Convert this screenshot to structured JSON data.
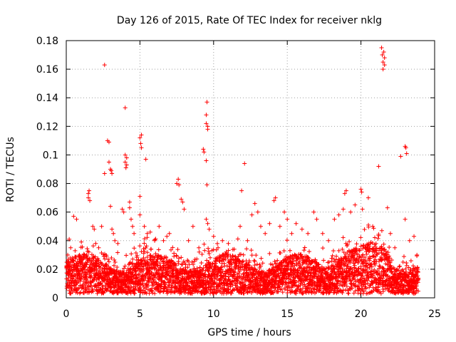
{
  "chart_data": {
    "type": "scatter",
    "title": "Day 126 of 2015, Rate Of TEC Index for receiver nklg",
    "xlabel": "GPS time / hours",
    "ylabel": "ROTI / TECUs",
    "xlim": [
      0,
      25
    ],
    "ylim": [
      0,
      0.18
    ],
    "xticks": [
      0,
      5,
      10,
      15,
      20,
      25
    ],
    "yticks": [
      0,
      0.02,
      0.04,
      0.06,
      0.08,
      0.1,
      0.12,
      0.14,
      0.16,
      0.18
    ],
    "xtick_labels": [
      "0",
      "5",
      "10",
      "15",
      "20",
      "25"
    ],
    "ytick_labels": [
      "0",
      "0.02",
      "0.04",
      "0.06",
      "0.08",
      "0.1",
      "0.12",
      "0.14",
      "0.16",
      "0.18"
    ],
    "grid": true,
    "marker": "+",
    "color": "#ff0000",
    "series": [
      {
        "name": "ROTI",
        "points": [
          [
            0.1,
            0.03
          ],
          [
            0.2,
            0.041
          ],
          [
            0.3,
            0.035
          ],
          [
            0.4,
            0.028
          ],
          [
            0.5,
            0.057
          ],
          [
            0.6,
            0.033
          ],
          [
            0.7,
            0.055
          ],
          [
            0.9,
            0.03
          ],
          [
            1.0,
            0.026
          ],
          [
            1.2,
            0.03
          ],
          [
            1.5,
            0.073
          ],
          [
            1.5,
            0.07
          ],
          [
            1.55,
            0.075
          ],
          [
            1.6,
            0.068
          ],
          [
            1.8,
            0.05
          ],
          [
            1.9,
            0.048
          ],
          [
            2.0,
            0.038
          ],
          [
            2.2,
            0.035
          ],
          [
            2.4,
            0.05
          ],
          [
            2.6,
            0.163
          ],
          [
            2.6,
            0.087
          ],
          [
            2.8,
            0.11
          ],
          [
            2.9,
            0.109
          ],
          [
            2.9,
            0.095
          ],
          [
            3.0,
            0.09
          ],
          [
            3.05,
            0.089
          ],
          [
            3.1,
            0.087
          ],
          [
            3.0,
            0.064
          ],
          [
            3.1,
            0.048
          ],
          [
            3.2,
            0.045
          ],
          [
            3.3,
            0.04
          ],
          [
            3.5,
            0.038
          ],
          [
            3.8,
            0.062
          ],
          [
            3.9,
            0.06
          ],
          [
            4.0,
            0.1
          ],
          [
            4.0,
            0.095
          ],
          [
            4.05,
            0.091
          ],
          [
            4.0,
            0.133
          ],
          [
            4.1,
            0.098
          ],
          [
            4.1,
            0.093
          ],
          [
            4.3,
            0.067
          ],
          [
            4.3,
            0.063
          ],
          [
            4.4,
            0.055
          ],
          [
            4.5,
            0.05
          ],
          [
            4.6,
            0.045
          ],
          [
            5.0,
            0.112
          ],
          [
            5.05,
            0.108
          ],
          [
            5.1,
            0.114
          ],
          [
            5.1,
            0.105
          ],
          [
            5.0,
            0.071
          ],
          [
            5.0,
            0.058
          ],
          [
            5.3,
            0.05
          ],
          [
            5.4,
            0.097
          ],
          [
            5.5,
            0.045
          ],
          [
            5.7,
            0.046
          ],
          [
            6.0,
            0.04
          ],
          [
            6.3,
            0.05
          ],
          [
            6.6,
            0.04
          ],
          [
            7.0,
            0.045
          ],
          [
            7.5,
            0.08
          ],
          [
            7.6,
            0.083
          ],
          [
            7.65,
            0.079
          ],
          [
            7.8,
            0.069
          ],
          [
            7.9,
            0.067
          ],
          [
            8.0,
            0.062
          ],
          [
            8.3,
            0.04
          ],
          [
            8.6,
            0.05
          ],
          [
            9.0,
            0.035
          ],
          [
            9.3,
            0.104
          ],
          [
            9.35,
            0.102
          ],
          [
            9.5,
            0.128
          ],
          [
            9.5,
            0.122
          ],
          [
            9.55,
            0.137
          ],
          [
            9.6,
            0.12
          ],
          [
            9.6,
            0.118
          ],
          [
            9.5,
            0.096
          ],
          [
            9.55,
            0.079
          ],
          [
            9.5,
            0.055
          ],
          [
            9.6,
            0.052
          ],
          [
            9.7,
            0.048
          ],
          [
            10.0,
            0.043
          ],
          [
            10.3,
            0.035
          ],
          [
            10.6,
            0.04
          ],
          [
            11.0,
            0.038
          ],
          [
            11.4,
            0.034
          ],
          [
            11.8,
            0.05
          ],
          [
            11.9,
            0.075
          ],
          [
            12.1,
            0.094
          ],
          [
            12.3,
            0.04
          ],
          [
            12.6,
            0.058
          ],
          [
            12.8,
            0.066
          ],
          [
            13.0,
            0.06
          ],
          [
            13.2,
            0.05
          ],
          [
            13.5,
            0.045
          ],
          [
            13.8,
            0.052
          ],
          [
            14.1,
            0.068
          ],
          [
            14.2,
            0.07
          ],
          [
            14.5,
            0.05
          ],
          [
            14.8,
            0.06
          ],
          [
            15.0,
            0.055
          ],
          [
            15.3,
            0.045
          ],
          [
            15.6,
            0.052
          ],
          [
            16.0,
            0.048
          ],
          [
            16.4,
            0.045
          ],
          [
            16.8,
            0.06
          ],
          [
            17.0,
            0.055
          ],
          [
            17.4,
            0.045
          ],
          [
            17.8,
            0.04
          ],
          [
            18.2,
            0.055
          ],
          [
            18.5,
            0.058
          ],
          [
            18.8,
            0.062
          ],
          [
            18.9,
            0.073
          ],
          [
            19.0,
            0.075
          ],
          [
            19.3,
            0.06
          ],
          [
            19.6,
            0.065
          ],
          [
            20.0,
            0.076
          ],
          [
            20.05,
            0.074
          ],
          [
            20.1,
            0.062
          ],
          [
            20.5,
            0.07
          ],
          [
            20.8,
            0.05
          ],
          [
            21.2,
            0.092
          ],
          [
            21.4,
            0.175
          ],
          [
            21.45,
            0.17
          ],
          [
            21.5,
            0.165
          ],
          [
            21.5,
            0.16
          ],
          [
            21.55,
            0.172
          ],
          [
            21.6,
            0.168
          ],
          [
            21.6,
            0.163
          ],
          [
            21.8,
            0.063
          ],
          [
            22.0,
            0.045
          ],
          [
            22.3,
            0.035
          ],
          [
            22.7,
            0.099
          ],
          [
            23.0,
            0.106
          ],
          [
            23.05,
            0.105
          ],
          [
            23.1,
            0.101
          ],
          [
            23.0,
            0.055
          ],
          [
            23.3,
            0.04
          ],
          [
            23.6,
            0.043
          ],
          [
            23.8,
            0.03
          ]
        ]
      }
    ]
  }
}
